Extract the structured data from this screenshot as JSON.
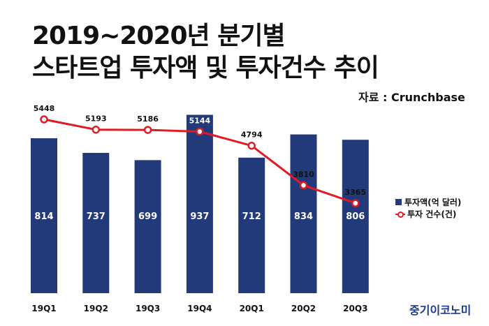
{
  "header": {
    "title_line1": "2019~2020년 분기별",
    "title_line2": "스타트업 투자액 및 투자건수 추이",
    "source": "자료 : Crunchbase"
  },
  "brand": "중기이코노미",
  "legend": {
    "bar_label": "투자액(억 달러)",
    "line_label": "투자 건수(건)"
  },
  "colors": {
    "bar": "#233a7a",
    "line": "#e01b24"
  },
  "chart_data": {
    "type": "bar",
    "categories": [
      "19Q1",
      "19Q2",
      "19Q3",
      "19Q4",
      "20Q1",
      "20Q2",
      "20Q3"
    ],
    "series": [
      {
        "name": "투자액(억 달러)",
        "type": "bar",
        "values": [
          814,
          737,
          699,
          937,
          712,
          834,
          806
        ]
      },
      {
        "name": "투자 건수(건)",
        "type": "line",
        "values": [
          5448,
          5193,
          5186,
          5144,
          4794,
          3810,
          3365
        ]
      }
    ],
    "title": "2019~2020년 분기별 스타트업 투자액 및 투자건수 추이",
    "xlabel": "",
    "ylabel": "",
    "bar_ylim": [
      0,
      1000
    ],
    "line_ylim": [
      2500,
      5600
    ],
    "legend_position": "right"
  }
}
